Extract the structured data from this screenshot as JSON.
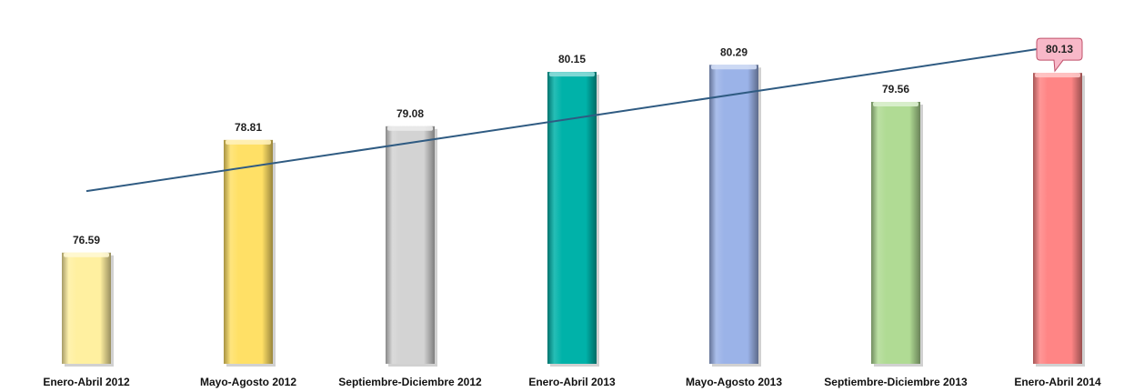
{
  "chart_data": {
    "type": "bar",
    "title": "",
    "xlabel": "",
    "ylabel": "",
    "categories": [
      "Enero-Abril 2012",
      "Mayo-Agosto 2012",
      "Septiembre-Diciembre 2012",
      "Enero-Abril 2013",
      "Mayo-Agosto 2013",
      "Septiembre-Diciembre 2013",
      "Enero-Abril 2014"
    ],
    "values": [
      76.59,
      78.81,
      79.08,
      80.15,
      80.29,
      79.56,
      80.13
    ],
    "value_labels": [
      "76.59",
      "78.81",
      "79.08",
      "80.15",
      "80.29",
      "79.56",
      "80.13"
    ],
    "colors": [
      "#FFF0A0",
      "#FFE066",
      "#D3D3D3",
      "#00B2A9",
      "#9BB3E8",
      "#B0DB94",
      "#FF8585"
    ],
    "highlighted_index": 6,
    "highlight_color": "#F8B8C8",
    "trendline": {
      "type": "linear",
      "color": "#2F5B82"
    },
    "ylim": [
      74.4,
      80.85
    ],
    "grid": false,
    "legend": "none"
  }
}
